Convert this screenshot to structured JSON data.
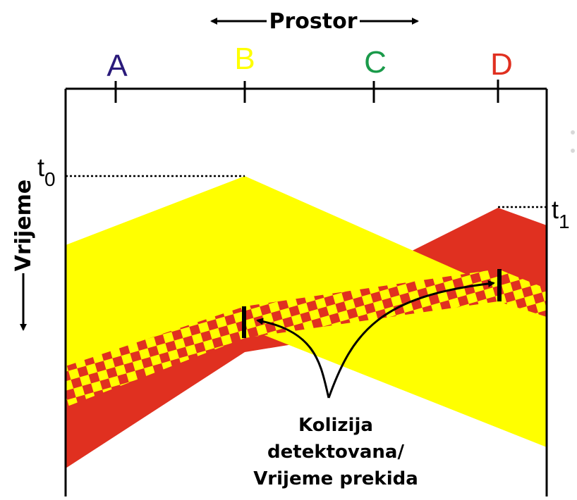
{
  "axes": {
    "space_label": "Prostor",
    "time_label": "Vrijeme"
  },
  "stations": [
    {
      "label": "A",
      "color": "#2a1a7a"
    },
    {
      "label": "B",
      "color": "#ffff00"
    },
    {
      "label": "C",
      "color": "#1a9a4a"
    },
    {
      "label": "D",
      "color": "#e03020"
    }
  ],
  "times": {
    "t0": {
      "base": "t",
      "sub": "0"
    },
    "t1": {
      "base": "t",
      "sub": "1"
    }
  },
  "annotation": {
    "line1": "Kolizija",
    "line2": "detektovana/",
    "line3": "Vrijeme prekida"
  },
  "colors": {
    "signal_b": "#ffff00",
    "signal_d": "#e03020",
    "collision_a": "#e03020",
    "collision_b": "#ffff00",
    "lines": "#000000"
  }
}
